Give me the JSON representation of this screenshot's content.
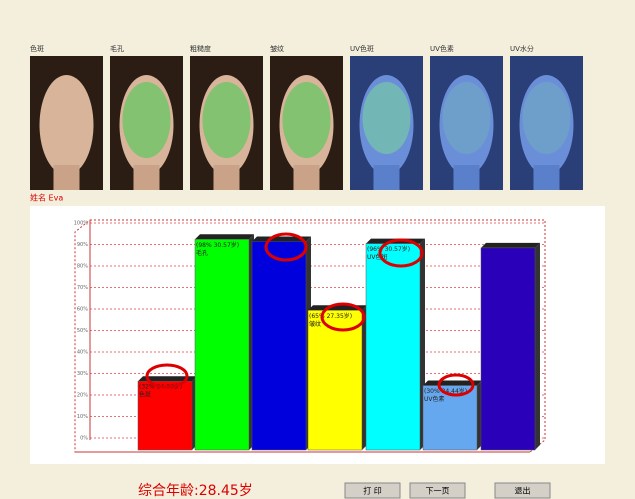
{
  "images": [
    "色斑",
    "毛孔",
    "粗糙度",
    "皱纹",
    "UV色斑",
    "UV色素",
    "UV水分"
  ],
  "patient": "姓名 Eva",
  "chart_data": {
    "type": "bar",
    "categories": [
      "色斑",
      "毛孔",
      null,
      "皱纹",
      "UV色斑",
      "UV色素",
      null
    ],
    "values": [
      32,
      98,
      97,
      65,
      96,
      30,
      94
    ],
    "value_labels": [
      "(32% 34.33岁)",
      "(98% 30.57岁)",
      null,
      "(65% 27.35岁)",
      "(96% 30.57岁)",
      "(30% 24.44岁)",
      null
    ],
    "colors": [
      "#ff0000",
      "#00ff00",
      "#0000dd",
      "#ffff00",
      "#00ffff",
      "#66a8f0",
      "#2a00b8"
    ],
    "ylim": [
      0,
      100
    ],
    "yticks": [
      {
        "value": 0,
        "label": "0%"
      },
      {
        "value": 10,
        "label": "10%"
      },
      {
        "value": 20,
        "label": "20%"
      },
      {
        "value": 30,
        "label": "30%"
      },
      {
        "value": 40,
        "label": "40%"
      },
      {
        "value": 50,
        "label": "50%"
      },
      {
        "value": 60,
        "label": "60%"
      },
      {
        "value": 70,
        "label": "70%"
      },
      {
        "value": 80,
        "label": "80%"
      },
      {
        "value": 90,
        "label": "90%"
      },
      {
        "value": 100,
        "label": "100%"
      }
    ],
    "grid": true
  },
  "summary": "综合年龄:28.45岁",
  "buttons": [
    "打 印",
    "下一页",
    "退出"
  ]
}
